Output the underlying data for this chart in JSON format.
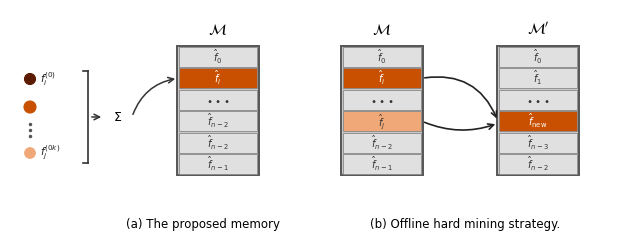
{
  "bg_color": "#ffffff",
  "bank_bg": "#c8c8c8",
  "bank_row_bg": "#e0e0e0",
  "orange_dark": "#c85000",
  "orange_light": "#f0a878",
  "caption_a": "(a) The proposed memory",
  "caption_b": "(b) Offline hard mining strategy.",
  "bank1_title": "$\\mathcal{M}$",
  "bank2_title": "$\\mathcal{M}$",
  "bank3_title": "$\\mathcal{M}'$",
  "bank1_rows": [
    "$\\hat{f}_0$",
    "$\\hat{f}_i$",
    "$\\bullet\\bullet\\bullet$",
    "$\\hat{f}_{n-2}$",
    "$\\hat{f}_{n-2}$",
    "$\\hat{f}_{n-1}$"
  ],
  "bank1_highlight": [
    1
  ],
  "bank1_highlight_color": "#c85000",
  "bank2_rows": [
    "$\\hat{f}_0$",
    "$\\hat{f}_i$",
    "$\\bullet\\bullet\\bullet$",
    "$\\hat{f}_j$",
    "$\\hat{f}_{n-2}$",
    "$\\hat{f}_{n-1}$"
  ],
  "bank2_highlight": [
    1
  ],
  "bank2_highlight_color": "#c85000",
  "bank2_highlight2": [
    3
  ],
  "bank2_highlight2_color": "#f0a878",
  "bank3_rows": [
    "$\\hat{f}_0$",
    "$\\hat{f}_1$",
    "$\\bullet\\bullet\\bullet$",
    "$\\hat{f}_{\\rm new}$",
    "$\\hat{f}_{n-3}$",
    "$\\hat{f}_{n-2}$"
  ],
  "bank3_highlight": [
    3
  ],
  "bank3_highlight_color": "#c85000",
  "circles_colors": [
    "#5c1a00",
    "#c85000",
    "#f0a878"
  ],
  "circle_radii": [
    0.055,
    0.06,
    0.053
  ]
}
